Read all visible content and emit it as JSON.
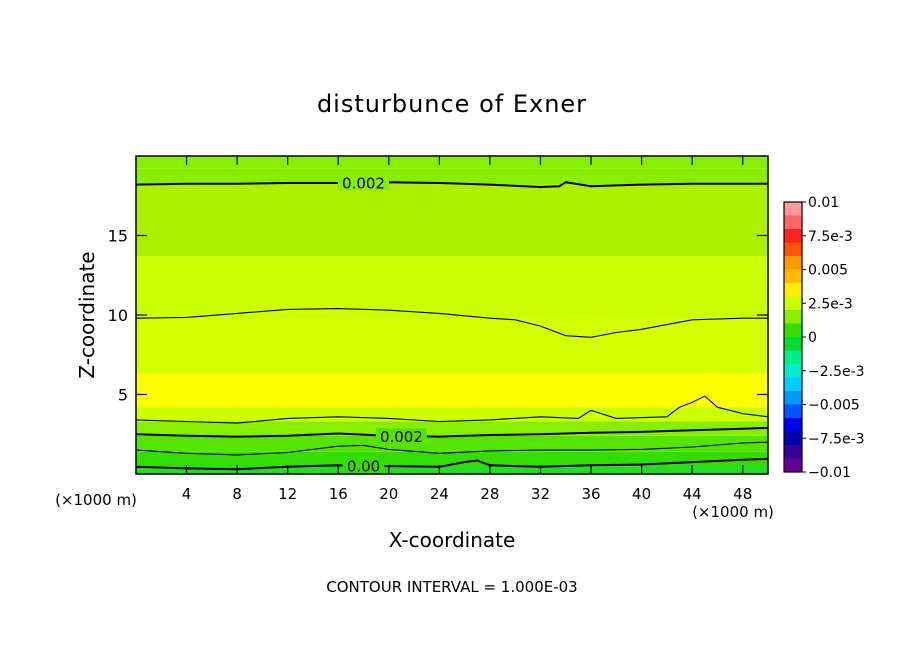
{
  "chart_data": {
    "type": "heatmap",
    "title": "disturbunce of Exner",
    "xlabel": "X-coordinate",
    "ylabel": "Z-coordinate",
    "x_unit_label": "(×1000 m)",
    "y_unit_label": "(×1000 m)",
    "xlim": [
      0,
      50
    ],
    "ylim": [
      0,
      20
    ],
    "x_ticks": [
      4,
      8,
      12,
      16,
      20,
      24,
      28,
      32,
      36,
      40,
      44,
      48
    ],
    "y_ticks": [
      5,
      10,
      15
    ],
    "footnote": "CONTOUR INTERVAL = 1.000E-03",
    "contour_interval": 0.001,
    "colorbar": {
      "range": [
        -0.01,
        0.01
      ],
      "tick_labels": [
        "0.01",
        "7.5e-3",
        "0.005",
        "2.5e-3",
        "0",
        "−2.5e-3",
        "−0.005",
        "−7.5e-3",
        "−0.01"
      ],
      "tick_values": [
        0.01,
        0.0075,
        0.005,
        0.0025,
        0,
        -0.0025,
        -0.005,
        -0.0075,
        -0.01
      ],
      "colors": [
        "#ff9999",
        "#ff6666",
        "#ff2222",
        "#ff5500",
        "#ff9900",
        "#ffbb00",
        "#ffee00",
        "#ccff00",
        "#88ee00",
        "#33dd00",
        "#00dd33",
        "#00ee88",
        "#00eecc",
        "#00ccff",
        "#0099ff",
        "#0055ff",
        "#0000ee",
        "#0000aa",
        "#330099",
        "#660099"
      ]
    },
    "field_bands": [
      {
        "z": [
          19.2,
          20.0
        ],
        "value": 0.0016,
        "color": "#88ee00"
      },
      {
        "z": [
          18.2,
          19.2
        ],
        "value": 0.0019,
        "color": "#88ee00"
      },
      {
        "z": [
          13.7,
          18.2
        ],
        "value": 0.0024,
        "color": "#aaf000"
      },
      {
        "z": [
          9.8,
          13.7
        ],
        "value": 0.0028,
        "color": "#ccff00"
      },
      {
        "z": [
          6.3,
          9.8
        ],
        "value": 0.003,
        "color": "#d4ff00"
      },
      {
        "z": [
          4.2,
          6.3
        ],
        "value": 0.0033,
        "color": "#ffff00"
      },
      {
        "z": [
          3.3,
          4.2
        ],
        "value": 0.0027,
        "color": "#ccff00"
      },
      {
        "z": [
          2.4,
          3.3
        ],
        "value": 0.0021,
        "color": "#88ee00"
      },
      {
        "z": [
          1.4,
          2.4
        ],
        "value": 0.0014,
        "color": "#55e400"
      },
      {
        "z": [
          0.5,
          1.4
        ],
        "value": 0.0006,
        "color": "#33dd00"
      },
      {
        "z": [
          0.0,
          0.5
        ],
        "value": 0.0002,
        "color": "#22dd22"
      }
    ],
    "contours": [
      {
        "level": 0.002,
        "label": "0.002",
        "label_x": 18,
        "x": [
          0,
          4,
          8,
          12,
          16,
          20,
          24,
          28,
          32,
          33.5,
          34,
          36,
          40,
          44,
          48,
          50
        ],
        "z": [
          18.2,
          18.25,
          18.25,
          18.3,
          18.3,
          18.35,
          18.3,
          18.2,
          18.05,
          18.1,
          18.35,
          18.1,
          18.2,
          18.25,
          18.25,
          18.25
        ]
      },
      {
        "level": 0.003,
        "label": "",
        "label_x": 0,
        "x": [
          0,
          4,
          8,
          12,
          16,
          20,
          24,
          28,
          30,
          32,
          34,
          36,
          38,
          40,
          44,
          48,
          50
        ],
        "z": [
          9.8,
          9.85,
          10.1,
          10.35,
          10.4,
          10.3,
          10.1,
          9.8,
          9.7,
          9.3,
          8.7,
          8.6,
          8.9,
          9.1,
          9.7,
          9.8,
          9.8
        ]
      },
      {
        "level": 0.003,
        "label": "",
        "label_x": 0,
        "x": [
          0,
          4,
          8,
          12,
          16,
          20,
          24,
          28,
          32,
          35,
          36,
          38,
          42,
          43,
          44,
          45,
          46,
          48,
          50
        ],
        "z": [
          3.4,
          3.3,
          3.2,
          3.5,
          3.6,
          3.5,
          3.3,
          3.4,
          3.6,
          3.5,
          4.0,
          3.5,
          3.6,
          4.2,
          4.5,
          4.9,
          4.2,
          3.8,
          3.6
        ]
      },
      {
        "level": 0.002,
        "label": "0.002",
        "label_x": 21,
        "x": [
          0,
          4,
          8,
          12,
          16,
          20,
          24,
          28,
          32,
          36,
          40,
          44,
          48,
          50
        ],
        "z": [
          2.5,
          2.4,
          2.35,
          2.4,
          2.55,
          2.4,
          2.35,
          2.45,
          2.5,
          2.6,
          2.65,
          2.75,
          2.85,
          2.9
        ]
      },
      {
        "level": 0.001,
        "label": "",
        "label_x": 0,
        "x": [
          0,
          4,
          8,
          12,
          16,
          18,
          20,
          24,
          28,
          32,
          36,
          40,
          44,
          48,
          50
        ],
        "z": [
          1.5,
          1.3,
          1.2,
          1.35,
          1.75,
          1.8,
          1.55,
          1.3,
          1.45,
          1.5,
          1.5,
          1.55,
          1.7,
          1.95,
          2.0
        ]
      },
      {
        "level": 0.0,
        "label": "0.00",
        "label_x": 18,
        "x": [
          0,
          4,
          8,
          12,
          16,
          20,
          24,
          26,
          27,
          28,
          32,
          36,
          40,
          44,
          48,
          50
        ],
        "z": [
          0.45,
          0.35,
          0.3,
          0.45,
          0.55,
          0.5,
          0.45,
          0.75,
          0.85,
          0.55,
          0.45,
          0.55,
          0.6,
          0.75,
          0.9,
          0.95
        ]
      }
    ],
    "local_maxima": [
      {
        "x": 1.5,
        "z": 5.3,
        "rx": 1.2,
        "rz": 0.6,
        "color": "#ffff00"
      },
      {
        "x": 37.5,
        "z": 5.0,
        "rx": 1.5,
        "rz": 0.5,
        "color": "#ffff00"
      },
      {
        "x": 39.5,
        "z": 5.2,
        "rx": 1.3,
        "rz": 0.5,
        "color": "#ffff00"
      },
      {
        "x": 45.8,
        "z": 6.0,
        "rx": 0.7,
        "rz": 0.4,
        "color": "#ffff00"
      }
    ],
    "grid": false
  }
}
